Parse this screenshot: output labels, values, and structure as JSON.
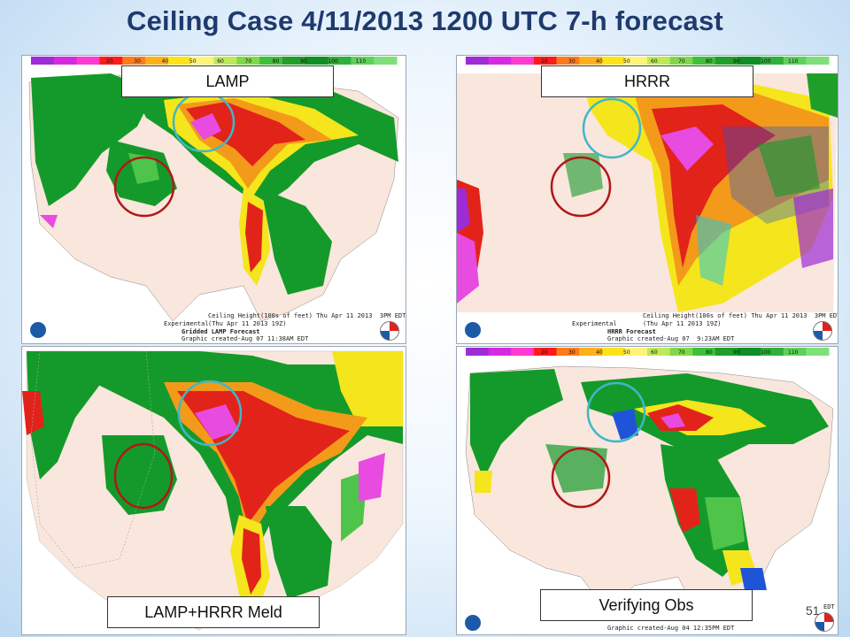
{
  "title": "Ceiling Case 4/11/2013 1200 UTC 7-h forecast",
  "colorbar_ticks": [
    "20",
    "30",
    "40",
    "50",
    "60",
    "70",
    "80",
    "90",
    "100",
    "110"
  ],
  "panels": {
    "lamp": {
      "label": "LAMP",
      "footer_experimental": "Experimental",
      "footer_valid": "(Thu Apr 11 2013 19Z)",
      "footer_product": "Gridded LAMP Forecast",
      "footer_created": "Graphic created-Aug 07 11:38AM EDT",
      "footer_title": "Ceiling Height(100s of feet) Thu Apr 11 2013  3PM EDT"
    },
    "hrrr": {
      "label": "HRRR",
      "footer_experimental": "Experimental",
      "footer_valid": "(Thu Apr 11 2013 19Z)",
      "footer_product": "HRRR Forecast",
      "footer_created": "Graphic created-Aug 07  9:23AM EDT",
      "footer_title": "Ceiling Height(100s of feet) Thu Apr 11 2013  3PM EDT"
    },
    "meld": {
      "label": "LAMP+HRRR Meld"
    },
    "obs": {
      "label": "Verifying Obs",
      "footer_created": "Graphic created-Aug 04 12:35PM EDT",
      "footer_edt": "EDT"
    }
  },
  "page_number": "51",
  "colors": {
    "title": "#1f3a6e",
    "circle_cyan": "#3fb7c9",
    "circle_red": "#b01818",
    "land": "#f9e6dc",
    "green": "#149a2a",
    "lightgreen": "#4fc44a",
    "yellow": "#f5e51c",
    "orange": "#f39a1a",
    "red": "#e2231a",
    "magenta": "#e84be0",
    "blue": "#1f54d8",
    "cyan": "#22c8d8"
  },
  "colorbar_colors": [
    "#9d2bd6",
    "#d42be0",
    "#ff3ad0",
    "#ff1a1a",
    "#ff7a1a",
    "#ffb01a",
    "#ffe21a",
    "#fff37a",
    "#bfe85a",
    "#7fd84a",
    "#3fbf3a",
    "#1f9f2a",
    "#0f8f22",
    "#2fb03a",
    "#5fd05a",
    "#7fe07a"
  ]
}
